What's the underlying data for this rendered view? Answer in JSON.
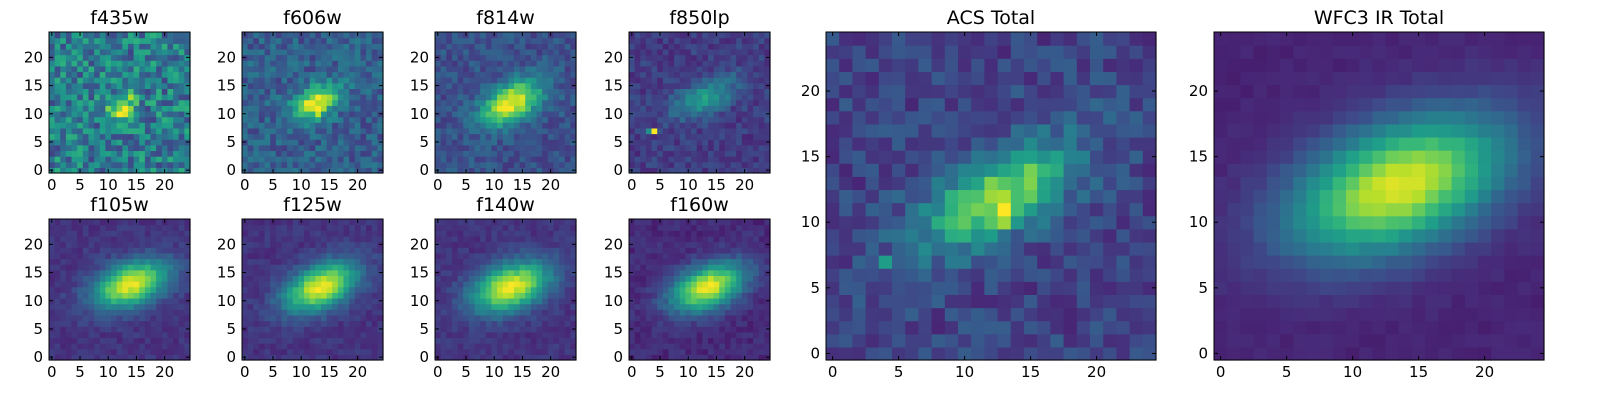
{
  "figure": {
    "colormap": "viridis",
    "colormap_stops": [
      "#440154",
      "#482878",
      "#3e4989",
      "#31688e",
      "#26828e",
      "#1f9e89",
      "#35b779",
      "#6ece58",
      "#b5de2b",
      "#fde725"
    ]
  },
  "chart_data": [
    {
      "type": "heatmap",
      "title": "f435w",
      "grid_size": 25,
      "xticks": [
        "0",
        "5",
        "10",
        "15",
        "20"
      ],
      "yticks": [
        "0",
        "5",
        "10",
        "15",
        "20"
      ],
      "xlim": [
        -0.5,
        24.5
      ],
      "ylim": [
        -0.5,
        24.5
      ],
      "source": {
        "center": [
          12.5,
          11.5
        ],
        "sigma_x": 1.8,
        "sigma_y": 1.3,
        "angle_deg": 30,
        "peak": 0.55,
        "background": 0.42,
        "noise": 0.22
      },
      "hot_pixels": [
        {
          "x": 12,
          "y": 10,
          "value": 1.0
        },
        {
          "x": 13,
          "y": 10,
          "value": 0.95
        },
        {
          "x": 12,
          "y": 12,
          "value": 0.75
        }
      ]
    },
    {
      "type": "heatmap",
      "title": "f606w",
      "grid_size": 25,
      "xticks": [
        "0",
        "5",
        "10",
        "15",
        "20"
      ],
      "yticks": [
        "0",
        "5",
        "10",
        "15",
        "20"
      ],
      "xlim": [
        -0.5,
        24.5
      ],
      "ylim": [
        -0.5,
        24.5
      ],
      "source": {
        "center": [
          12.5,
          12.0
        ],
        "sigma_x": 3.2,
        "sigma_y": 1.8,
        "angle_deg": 30,
        "peak": 0.7,
        "background": 0.3,
        "noise": 0.12
      },
      "hot_pixels": [
        {
          "x": 13,
          "y": 11,
          "value": 1.0
        },
        {
          "x": 14,
          "y": 13,
          "value": 0.9
        },
        {
          "x": 13,
          "y": 10,
          "value": 0.9
        }
      ]
    },
    {
      "type": "heatmap",
      "title": "f814w",
      "grid_size": 25,
      "xticks": [
        "0",
        "5",
        "10",
        "15",
        "20"
      ],
      "yticks": [
        "0",
        "5",
        "10",
        "15",
        "20"
      ],
      "xlim": [
        -0.5,
        24.5
      ],
      "ylim": [
        -0.5,
        24.5
      ],
      "source": {
        "center": [
          13.0,
          12.0
        ],
        "sigma_x": 4.0,
        "sigma_y": 2.2,
        "angle_deg": 30,
        "peak": 0.75,
        "background": 0.25,
        "noise": 0.09
      },
      "hot_pixels": [
        {
          "x": 13,
          "y": 11,
          "value": 1.0
        },
        {
          "x": 14,
          "y": 12,
          "value": 0.9
        }
      ]
    },
    {
      "type": "heatmap",
      "title": "f850lp",
      "grid_size": 25,
      "xticks": [
        "0",
        "5",
        "10",
        "15",
        "20"
      ],
      "yticks": [
        "0",
        "5",
        "10",
        "15",
        "20"
      ],
      "xlim": [
        -0.5,
        24.5
      ],
      "ylim": [
        -0.5,
        24.5
      ],
      "source": {
        "center": [
          13.0,
          13.0
        ],
        "sigma_x": 4.5,
        "sigma_y": 2.0,
        "angle_deg": 25,
        "peak": 0.35,
        "background": 0.18,
        "noise": 0.08
      },
      "hot_pixels": [
        {
          "x": 4,
          "y": 7,
          "value": 1.0
        },
        {
          "x": 3,
          "y": 7,
          "value": 0.5
        }
      ]
    },
    {
      "type": "heatmap",
      "title": "f105w",
      "grid_size": 25,
      "xticks": [
        "0",
        "5",
        "10",
        "15",
        "20"
      ],
      "yticks": [
        "0",
        "5",
        "10",
        "15",
        "20"
      ],
      "xlim": [
        -0.5,
        24.5
      ],
      "ylim": [
        -0.5,
        24.5
      ],
      "source": {
        "center": [
          14.0,
          13.0
        ],
        "sigma_x": 4.8,
        "sigma_y": 2.6,
        "angle_deg": 20,
        "peak": 0.82,
        "background": 0.15,
        "noise": 0.05
      },
      "hot_pixels": []
    },
    {
      "type": "heatmap",
      "title": "f125w",
      "grid_size": 25,
      "xticks": [
        "0",
        "5",
        "10",
        "15",
        "20"
      ],
      "yticks": [
        "0",
        "5",
        "10",
        "15",
        "20"
      ],
      "xlim": [
        -0.5,
        24.5
      ],
      "ylim": [
        -0.5,
        24.5
      ],
      "source": {
        "center": [
          13.5,
          12.5
        ],
        "sigma_x": 4.8,
        "sigma_y": 2.6,
        "angle_deg": 25,
        "peak": 0.82,
        "background": 0.15,
        "noise": 0.05
      },
      "hot_pixels": [
        {
          "x": 13,
          "y": 12,
          "value": 1.0
        },
        {
          "x": 14,
          "y": 14,
          "value": 0.9
        }
      ]
    },
    {
      "type": "heatmap",
      "title": "f140w",
      "grid_size": 25,
      "xticks": [
        "0",
        "5",
        "10",
        "15",
        "20"
      ],
      "yticks": [
        "0",
        "5",
        "10",
        "15",
        "20"
      ],
      "xlim": [
        -0.5,
        24.5
      ],
      "ylim": [
        -0.5,
        24.5
      ],
      "source": {
        "center": [
          13.0,
          12.5
        ],
        "sigma_x": 5.0,
        "sigma_y": 2.8,
        "angle_deg": 20,
        "peak": 0.82,
        "background": 0.15,
        "noise": 0.05
      },
      "hot_pixels": []
    },
    {
      "type": "heatmap",
      "title": "f160w",
      "grid_size": 25,
      "xticks": [
        "0",
        "5",
        "10",
        "15",
        "20"
      ],
      "yticks": [
        "0",
        "5",
        "10",
        "15",
        "20"
      ],
      "xlim": [
        -0.5,
        24.5
      ],
      "ylim": [
        -0.5,
        24.5
      ],
      "source": {
        "center": [
          13.5,
          12.5
        ],
        "sigma_x": 4.8,
        "sigma_y": 2.6,
        "angle_deg": 22,
        "peak": 0.85,
        "background": 0.12,
        "noise": 0.05
      },
      "hot_pixels": []
    },
    {
      "type": "heatmap",
      "title": "ACS Total",
      "grid_size": 25,
      "xticks": [
        "0",
        "5",
        "10",
        "15",
        "20"
      ],
      "yticks": [
        "0",
        "5",
        "10",
        "15",
        "20"
      ],
      "xlim": [
        -0.5,
        24.5
      ],
      "ylim": [
        -0.5,
        24.5
      ],
      "source": {
        "center": [
          12.5,
          12.0
        ],
        "sigma_x": 4.5,
        "sigma_y": 2.0,
        "angle_deg": 30,
        "peak": 0.65,
        "background": 0.2,
        "noise": 0.1
      },
      "hot_pixels": [
        {
          "x": 13,
          "y": 11,
          "value": 1.0
        },
        {
          "x": 13,
          "y": 10,
          "value": 0.85
        },
        {
          "x": 12,
          "y": 12,
          "value": 0.85
        },
        {
          "x": 4,
          "y": 7,
          "value": 0.55
        }
      ]
    },
    {
      "type": "heatmap",
      "title": "WFC3 IR Total",
      "grid_size": 25,
      "xticks": [
        "0",
        "5",
        "10",
        "15",
        "20"
      ],
      "yticks": [
        "0",
        "5",
        "10",
        "15",
        "20"
      ],
      "xlim": [
        -0.5,
        24.5
      ],
      "ylim": [
        -0.5,
        24.5
      ],
      "source": {
        "center": [
          13.5,
          12.8
        ],
        "sigma_x": 6.0,
        "sigma_y": 3.2,
        "angle_deg": 22,
        "peak": 0.85,
        "background": 0.1,
        "noise": 0.02
      },
      "hot_pixels": []
    }
  ]
}
